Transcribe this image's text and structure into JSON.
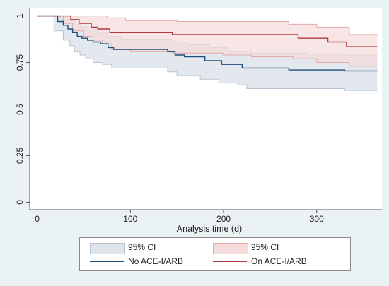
{
  "chart_data": {
    "type": "line",
    "title": "",
    "xlabel": "Analysis time (d)",
    "ylabel": "",
    "xlim": [
      -8,
      370
    ],
    "ylim": [
      -0.04,
      1.04
    ],
    "x_ticks": [
      0,
      100,
      200,
      300
    ],
    "x_tick_labels": [
      "0",
      "100",
      "200",
      "300"
    ],
    "y_ticks": [
      0,
      0.25,
      0.5,
      0.75,
      1
    ],
    "y_tick_labels": [
      "0",
      "0.25",
      "0.5",
      "0.75",
      "1"
    ],
    "grid": false,
    "legend_position": "bottom",
    "series": [
      {
        "name": "No ACE-I/ARB",
        "color": "#1f4e79",
        "band_color": "#dde4ea",
        "band_edge": "#b8c3cf",
        "steps": [
          [
            0,
            1.0
          ],
          [
            22,
            1.0
          ],
          [
            22,
            0.97
          ],
          [
            28,
            0.97
          ],
          [
            28,
            0.95
          ],
          [
            33,
            0.95
          ],
          [
            33,
            0.93
          ],
          [
            38,
            0.93
          ],
          [
            38,
            0.91
          ],
          [
            43,
            0.91
          ],
          [
            43,
            0.89
          ],
          [
            48,
            0.89
          ],
          [
            48,
            0.88
          ],
          [
            54,
            0.88
          ],
          [
            54,
            0.87
          ],
          [
            60,
            0.87
          ],
          [
            60,
            0.86
          ],
          [
            68,
            0.86
          ],
          [
            68,
            0.85
          ],
          [
            76,
            0.85
          ],
          [
            76,
            0.83
          ],
          [
            82,
            0.83
          ],
          [
            82,
            0.82
          ],
          [
            140,
            0.82
          ],
          [
            140,
            0.81
          ],
          [
            148,
            0.81
          ],
          [
            148,
            0.79
          ],
          [
            158,
            0.79
          ],
          [
            158,
            0.78
          ],
          [
            180,
            0.78
          ],
          [
            180,
            0.76
          ],
          [
            198,
            0.76
          ],
          [
            198,
            0.74
          ],
          [
            220,
            0.74
          ],
          [
            220,
            0.72
          ],
          [
            270,
            0.72
          ],
          [
            270,
            0.71
          ],
          [
            330,
            0.71
          ],
          [
            330,
            0.705
          ],
          [
            365,
            0.705
          ]
        ],
        "upper": [
          [
            0,
            1.0
          ],
          [
            25,
            1.0
          ],
          [
            25,
            0.99
          ],
          [
            33,
            0.99
          ],
          [
            33,
            0.975
          ],
          [
            40,
            0.975
          ],
          [
            40,
            0.955
          ],
          [
            47,
            0.955
          ],
          [
            47,
            0.94
          ],
          [
            55,
            0.94
          ],
          [
            55,
            0.925
          ],
          [
            65,
            0.925
          ],
          [
            65,
            0.91
          ],
          [
            75,
            0.91
          ],
          [
            75,
            0.89
          ],
          [
            90,
            0.89
          ],
          [
            90,
            0.875
          ],
          [
            145,
            0.875
          ],
          [
            145,
            0.86
          ],
          [
            160,
            0.86
          ],
          [
            160,
            0.845
          ],
          [
            185,
            0.845
          ],
          [
            185,
            0.83
          ],
          [
            205,
            0.83
          ],
          [
            205,
            0.81
          ],
          [
            230,
            0.81
          ],
          [
            230,
            0.8
          ],
          [
            290,
            0.8
          ],
          [
            290,
            0.795
          ],
          [
            330,
            0.795
          ],
          [
            330,
            0.79
          ],
          [
            365,
            0.79
          ]
        ],
        "lower": [
          [
            0,
            1.0
          ],
          [
            18,
            1.0
          ],
          [
            18,
            0.92
          ],
          [
            28,
            0.92
          ],
          [
            28,
            0.87
          ],
          [
            35,
            0.87
          ],
          [
            35,
            0.84
          ],
          [
            40,
            0.84
          ],
          [
            40,
            0.81
          ],
          [
            46,
            0.81
          ],
          [
            46,
            0.79
          ],
          [
            52,
            0.79
          ],
          [
            52,
            0.77
          ],
          [
            60,
            0.77
          ],
          [
            60,
            0.75
          ],
          [
            70,
            0.75
          ],
          [
            70,
            0.74
          ],
          [
            80,
            0.74
          ],
          [
            80,
            0.72
          ],
          [
            140,
            0.72
          ],
          [
            140,
            0.7
          ],
          [
            150,
            0.7
          ],
          [
            150,
            0.68
          ],
          [
            175,
            0.68
          ],
          [
            175,
            0.66
          ],
          [
            195,
            0.66
          ],
          [
            195,
            0.64
          ],
          [
            215,
            0.64
          ],
          [
            215,
            0.63
          ],
          [
            225,
            0.63
          ],
          [
            225,
            0.61
          ],
          [
            330,
            0.61
          ],
          [
            330,
            0.6
          ],
          [
            365,
            0.6
          ]
        ]
      },
      {
        "name": "On ACE-I/ARB",
        "color": "#b23a3a",
        "band_color": "#f5dcdc",
        "band_edge": "#e3a8a8",
        "steps": [
          [
            0,
            1.0
          ],
          [
            36,
            1.0
          ],
          [
            36,
            0.98
          ],
          [
            45,
            0.98
          ],
          [
            45,
            0.96
          ],
          [
            58,
            0.96
          ],
          [
            58,
            0.94
          ],
          [
            65,
            0.94
          ],
          [
            65,
            0.93
          ],
          [
            78,
            0.93
          ],
          [
            78,
            0.91
          ],
          [
            145,
            0.91
          ],
          [
            145,
            0.9
          ],
          [
            280,
            0.9
          ],
          [
            280,
            0.88
          ],
          [
            312,
            0.88
          ],
          [
            312,
            0.86
          ],
          [
            332,
            0.86
          ],
          [
            332,
            0.835
          ],
          [
            365,
            0.835
          ]
        ],
        "upper": [
          [
            0,
            1.0
          ],
          [
            75,
            1.0
          ],
          [
            75,
            0.99
          ],
          [
            95,
            0.99
          ],
          [
            95,
            0.975
          ],
          [
            150,
            0.975
          ],
          [
            150,
            0.97
          ],
          [
            270,
            0.97
          ],
          [
            270,
            0.955
          ],
          [
            300,
            0.955
          ],
          [
            300,
            0.94
          ],
          [
            335,
            0.94
          ],
          [
            335,
            0.9
          ],
          [
            365,
            0.9
          ]
        ],
        "lower": [
          [
            0,
            1.0
          ],
          [
            28,
            1.0
          ],
          [
            28,
            0.96
          ],
          [
            38,
            0.96
          ],
          [
            38,
            0.92
          ],
          [
            50,
            0.92
          ],
          [
            50,
            0.89
          ],
          [
            60,
            0.89
          ],
          [
            60,
            0.87
          ],
          [
            70,
            0.87
          ],
          [
            70,
            0.85
          ],
          [
            80,
            0.85
          ],
          [
            80,
            0.82
          ],
          [
            100,
            0.82
          ],
          [
            100,
            0.81
          ],
          [
            145,
            0.81
          ],
          [
            145,
            0.8
          ],
          [
            200,
            0.8
          ],
          [
            200,
            0.79
          ],
          [
            230,
            0.79
          ],
          [
            230,
            0.78
          ],
          [
            275,
            0.78
          ],
          [
            275,
            0.77
          ],
          [
            300,
            0.77
          ],
          [
            300,
            0.75
          ],
          [
            335,
            0.75
          ],
          [
            335,
            0.73
          ],
          [
            365,
            0.73
          ]
        ]
      }
    ]
  },
  "legend": {
    "items": [
      {
        "label": "95% CI",
        "kind": "band",
        "color": "#dde4ea",
        "edge": "#b8c3cf"
      },
      {
        "label": "95% CI",
        "kind": "band",
        "color": "#f5dcdc",
        "edge": "#e3a8a8"
      },
      {
        "label": "No ACE-I/ARB",
        "kind": "line",
        "color": "#1f4e79"
      },
      {
        "label": "On ACE-I/ARB",
        "kind": "line",
        "color": "#b23a3a"
      }
    ]
  }
}
